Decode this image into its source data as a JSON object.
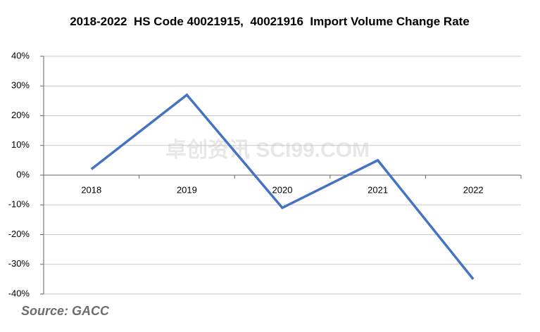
{
  "chart_data": {
    "type": "line",
    "title": "2018-2022  HS Code 40021915,  40021916  Import Volume Change Rate",
    "categories": [
      "2018",
      "2019",
      "2020",
      "2021",
      "2022"
    ],
    "values": [
      2,
      27,
      -11,
      5,
      -35
    ],
    "color": "#4472c4",
    "ylim": [
      -40,
      40
    ],
    "yticks": [
      {
        "value": -40,
        "label": "-40%"
      },
      {
        "value": -30,
        "label": "-30%"
      },
      {
        "value": -20,
        "label": "-20%"
      },
      {
        "value": -10,
        "label": "-10%"
      },
      {
        "value": 0,
        "label": "0%"
      },
      {
        "value": 10,
        "label": "10%"
      },
      {
        "value": 20,
        "label": "20%"
      },
      {
        "value": 30,
        "label": "30%"
      },
      {
        "value": 40,
        "label": "40%"
      }
    ],
    "grid": true,
    "source": "Source: GACC",
    "watermark": "卓创资讯 SCI99.COM"
  }
}
